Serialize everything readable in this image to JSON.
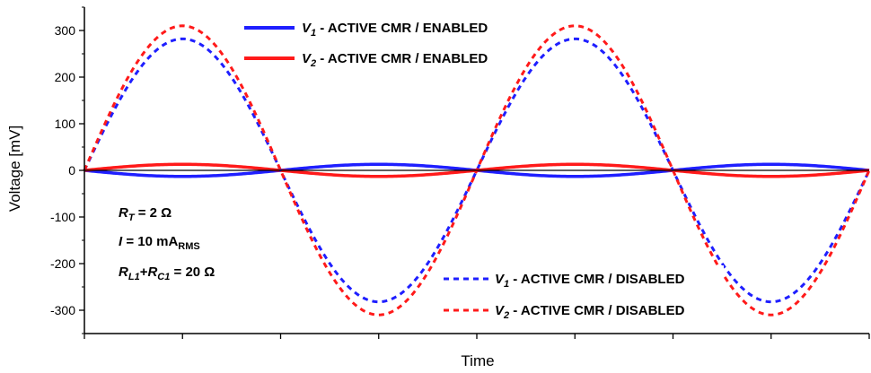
{
  "chart_data": {
    "type": "line",
    "title": "",
    "xlabel": "Time",
    "ylabel": "Voltage [mV]",
    "x_ticks_labeled": false,
    "ylim": [
      -350,
      350
    ],
    "yticks": [
      -300,
      -200,
      -100,
      0,
      100,
      200,
      300
    ],
    "grid": false,
    "zero_line": true,
    "legend_enabled": {
      "placement": "top-center",
      "entries": [
        {
          "var": "V",
          "sub": "1",
          "text": " - ACTIVE CMR / ENABLED"
        },
        {
          "var": "V",
          "sub": "2",
          "text": " - ACTIVE CMR / ENABLED"
        }
      ]
    },
    "legend_disabled": {
      "placement": "bottom-center",
      "entries": [
        {
          "var": "V",
          "sub": "1",
          "text": " - ACTIVE CMR / DISABLED"
        },
        {
          "var": "V",
          "sub": "2",
          "text": " - ACTIVE CMR / DISABLED"
        }
      ]
    },
    "annotations": {
      "rt": {
        "var": "R",
        "sub": "T",
        "rest": " = 2 Ω"
      },
      "current": {
        "var": "I",
        "rest": " = 10 mA",
        "sub": "RMS"
      },
      "rl": {
        "var1": "R",
        "sub1": "L1",
        "plus": "+",
        "var2": "R",
        "sub2": "C1",
        "rest": " = 20 Ω"
      }
    },
    "series": [
      {
        "name": "V1 - ACTIVE CMR / ENABLED",
        "color": "#1f1fff",
        "dashed": false,
        "amplitude": -13,
        "cycles": 2
      },
      {
        "name": "V2 - ACTIVE CMR / ENABLED",
        "color": "#ff1a1a",
        "dashed": false,
        "amplitude": 13,
        "cycles": 2
      },
      {
        "name": "V1 - ACTIVE CMR / DISABLED",
        "color": "#1f1fff",
        "dashed": true,
        "amplitude": 282,
        "cycles": 2
      },
      {
        "name": "V2 - ACTIVE CMR / DISABLED",
        "color": "#ff1a1a",
        "dashed": true,
        "amplitude": 310,
        "cycles": 2
      }
    ]
  }
}
